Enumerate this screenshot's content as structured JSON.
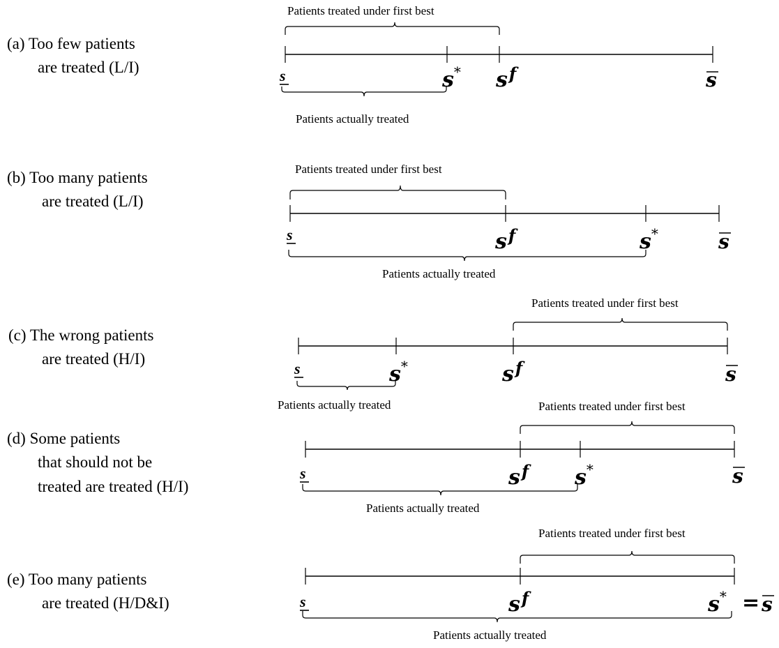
{
  "panels": [
    {
      "label_lines": [
        "(a) Too few patients",
        "are treated (L/I)"
      ],
      "top_brace": "Patients treated under first best",
      "bottom_brace": "Patients actually  treated",
      "markers": [
        "s",
        "s",
        "s",
        "s"
      ]
    },
    {
      "label_lines": [
        "(b) Too many patients",
        "are treated (L/I)"
      ],
      "top_brace": "Patients treated under first best",
      "bottom_brace": "Patients actually  treated"
    },
    {
      "label_lines": [
        "(c) The wrong patients",
        "are treated (H/I)"
      ],
      "top_brace": "Patients treated under first best",
      "bottom_brace": "Patients actually  treated"
    },
    {
      "label_lines": [
        "(d) Some patients",
        "that should not be",
        "treated are treated (H/I)"
      ],
      "top_brace": "Patients treated under first best",
      "bottom_brace": "Patients actually  treated"
    },
    {
      "label_lines": [
        "(e) Too many patients",
        "are treated (H/D&I)"
      ],
      "top_brace": "Patients treated under first best",
      "bottom_brace": "Patients actually  treated"
    }
  ],
  "symbols": {
    "s": "s",
    "star": "*",
    "f": "f",
    "equals": "="
  }
}
